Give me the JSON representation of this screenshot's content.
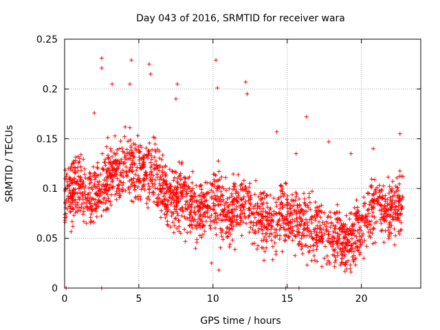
{
  "chart_data": {
    "type": "scatter",
    "title": "Day 043 of 2016, SRMTID for receiver wara",
    "xlabel": "GPS time / hours",
    "ylabel": "SRMTID / TECUs",
    "xlim": [
      0,
      24
    ],
    "ylim": [
      0,
      0.25
    ],
    "xticks": [
      0,
      5,
      10,
      15,
      20
    ],
    "xtick_labels": [
      "0",
      "5",
      "10",
      "15",
      "20"
    ],
    "yticks": [
      0,
      0.05,
      0.1,
      0.15,
      0.2,
      0.25
    ],
    "ytick_labels": [
      "0",
      "0.05",
      "0.1",
      "0.15",
      "0.2",
      "0.25"
    ],
    "grid": true,
    "marker": "+",
    "color": "#ff0000",
    "series": [
      {
        "name": "SRMTID",
        "profile_description_values": "sampled envelope of the dense point cloud",
        "profile": [
          [
            0.0,
            0.09
          ],
          [
            1.0,
            0.1
          ],
          [
            2.0,
            0.09
          ],
          [
            3.0,
            0.11
          ],
          [
            4.0,
            0.125
          ],
          [
            5.0,
            0.12
          ],
          [
            6.0,
            0.115
          ],
          [
            7.0,
            0.09
          ],
          [
            8.0,
            0.095
          ],
          [
            9.0,
            0.075
          ],
          [
            10.0,
            0.09
          ],
          [
            11.0,
            0.075
          ],
          [
            12.0,
            0.085
          ],
          [
            13.0,
            0.07
          ],
          [
            14.0,
            0.065
          ],
          [
            15.0,
            0.075
          ],
          [
            16.0,
            0.065
          ],
          [
            17.0,
            0.06
          ],
          [
            18.0,
            0.05
          ],
          [
            19.0,
            0.045
          ],
          [
            20.0,
            0.06
          ],
          [
            21.0,
            0.085
          ],
          [
            22.0,
            0.075
          ],
          [
            22.8,
            0.09
          ]
        ],
        "outliers": [
          [
            2.5,
            0.231
          ],
          [
            2.5,
            0.221
          ],
          [
            4.5,
            0.229
          ],
          [
            5.7,
            0.225
          ],
          [
            5.8,
            0.215
          ],
          [
            7.6,
            0.205
          ],
          [
            10.2,
            0.229
          ],
          [
            10.3,
            0.201
          ],
          [
            12.2,
            0.207
          ],
          [
            12.3,
            0.195
          ],
          [
            4.4,
            0.205
          ],
          [
            2.0,
            0.176
          ],
          [
            7.5,
            0.19
          ],
          [
            3.2,
            0.205
          ],
          [
            16.3,
            0.172
          ],
          [
            17.8,
            0.147
          ],
          [
            19.3,
            0.135
          ],
          [
            14.3,
            0.157
          ],
          [
            22.6,
            0.155
          ],
          [
            15.6,
            0.135
          ],
          [
            20.8,
            0.14
          ],
          [
            19.3,
            0.016
          ],
          [
            10.4,
            0.018
          ],
          [
            9.9,
            0.025
          ]
        ],
        "zeros": [
          0.1,
          2.5,
          14.9,
          15.8
        ]
      }
    ]
  }
}
